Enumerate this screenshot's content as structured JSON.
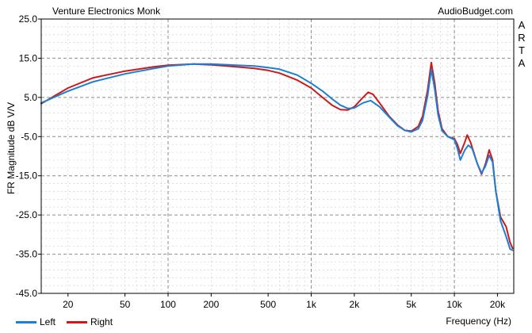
{
  "header": {
    "title": "Venture Electronics Monk",
    "brand": "AudioBudget.com",
    "watermark": [
      "A",
      "R",
      "T",
      "A"
    ]
  },
  "footer": {
    "xlabel": "Frequency (Hz)"
  },
  "chart_data": {
    "type": "line",
    "title": "Venture Electronics Monk",
    "xlabel": "Frequency (Hz)",
    "ylabel": "FR Magnitude dB V/V",
    "xscale": "log",
    "xlim": [
      13,
      26000
    ],
    "ylim": [
      -45,
      25
    ],
    "yticks": [
      25.0,
      15.0,
      5.0,
      -5.0,
      -15.0,
      -25.0,
      -35.0,
      -45.0
    ],
    "ytick_labels": [
      "25.0",
      "15.0",
      "5.0",
      "-5.0",
      "-15.0",
      "-25.0",
      "-35.0",
      "-45.0"
    ],
    "xticks": [
      20,
      50,
      100,
      200,
      500,
      1000,
      2000,
      5000,
      10000,
      20000
    ],
    "xtick_labels": [
      "20",
      "50",
      "100",
      "200",
      "500",
      "1k",
      "2k",
      "5k",
      "10k",
      "20k"
    ],
    "grid": true,
    "legend_position": "bottom-left",
    "series": [
      {
        "name": "Left",
        "color": "#1a7fd6",
        "points": [
          [
            13,
            3.6
          ],
          [
            20,
            6.6
          ],
          [
            30,
            9.0
          ],
          [
            50,
            11.0
          ],
          [
            80,
            12.4
          ],
          [
            100,
            13.0
          ],
          [
            150,
            13.5
          ],
          [
            200,
            13.5
          ],
          [
            300,
            13.2
          ],
          [
            400,
            13.0
          ],
          [
            500,
            12.6
          ],
          [
            600,
            12.2
          ],
          [
            800,
            10.7
          ],
          [
            1000,
            8.6
          ],
          [
            1200,
            6.6
          ],
          [
            1400,
            4.6
          ],
          [
            1600,
            3.0
          ],
          [
            1800,
            2.2
          ],
          [
            2000,
            2.3
          ],
          [
            2300,
            3.6
          ],
          [
            2600,
            4.2
          ],
          [
            3000,
            2.6
          ],
          [
            3500,
            0.0
          ],
          [
            4000,
            -2.2
          ],
          [
            4500,
            -3.4
          ],
          [
            5000,
            -3.8
          ],
          [
            5600,
            -3.0
          ],
          [
            6000,
            -0.8
          ],
          [
            6500,
            5.4
          ],
          [
            6900,
            12.1
          ],
          [
            7300,
            7.0
          ],
          [
            7700,
            0.5
          ],
          [
            8200,
            -3.5
          ],
          [
            9000,
            -5.0
          ],
          [
            10000,
            -5.8
          ],
          [
            10500,
            -8.0
          ],
          [
            11000,
            -11.0
          ],
          [
            11800,
            -8.5
          ],
          [
            12500,
            -7.2
          ],
          [
            13300,
            -8.0
          ],
          [
            14500,
            -12.0
          ],
          [
            15500,
            -14.3
          ],
          [
            16500,
            -12.5
          ],
          [
            17500,
            -9.8
          ],
          [
            18500,
            -11.5
          ],
          [
            19500,
            -19.0
          ],
          [
            21000,
            -26.5
          ],
          [
            23000,
            -30.5
          ],
          [
            24500,
            -33.7
          ],
          [
            25500,
            -34.0
          ]
        ]
      },
      {
        "name": "Right",
        "color": "#cc1a1a",
        "points": [
          [
            13,
            3.4
          ],
          [
            20,
            7.4
          ],
          [
            30,
            10.0
          ],
          [
            50,
            11.7
          ],
          [
            80,
            12.8
          ],
          [
            100,
            13.2
          ],
          [
            150,
            13.5
          ],
          [
            200,
            13.3
          ],
          [
            300,
            12.8
          ],
          [
            400,
            12.4
          ],
          [
            500,
            11.9
          ],
          [
            600,
            11.2
          ],
          [
            800,
            9.4
          ],
          [
            1000,
            7.4
          ],
          [
            1200,
            5.0
          ],
          [
            1400,
            3.0
          ],
          [
            1600,
            1.9
          ],
          [
            1800,
            1.8
          ],
          [
            2000,
            2.6
          ],
          [
            2300,
            5.0
          ],
          [
            2500,
            6.3
          ],
          [
            2700,
            5.8
          ],
          [
            3000,
            3.6
          ],
          [
            3500,
            0.2
          ],
          [
            4000,
            -2.0
          ],
          [
            4500,
            -3.4
          ],
          [
            5000,
            -3.6
          ],
          [
            5600,
            -2.4
          ],
          [
            6000,
            0.2
          ],
          [
            6500,
            6.8
          ],
          [
            6900,
            13.9
          ],
          [
            7300,
            8.5
          ],
          [
            7700,
            1.5
          ],
          [
            8200,
            -3.0
          ],
          [
            9000,
            -5.0
          ],
          [
            10000,
            -5.5
          ],
          [
            10500,
            -7.0
          ],
          [
            11000,
            -9.3
          ],
          [
            11800,
            -6.5
          ],
          [
            12300,
            -4.6
          ],
          [
            13000,
            -6.5
          ],
          [
            14500,
            -12.0
          ],
          [
            15500,
            -14.6
          ],
          [
            16500,
            -12.0
          ],
          [
            17500,
            -8.4
          ],
          [
            18500,
            -11.0
          ],
          [
            19500,
            -19.0
          ],
          [
            21000,
            -25.5
          ],
          [
            23000,
            -28.0
          ],
          [
            24500,
            -32.0
          ],
          [
            25500,
            -33.5
          ]
        ]
      }
    ]
  }
}
